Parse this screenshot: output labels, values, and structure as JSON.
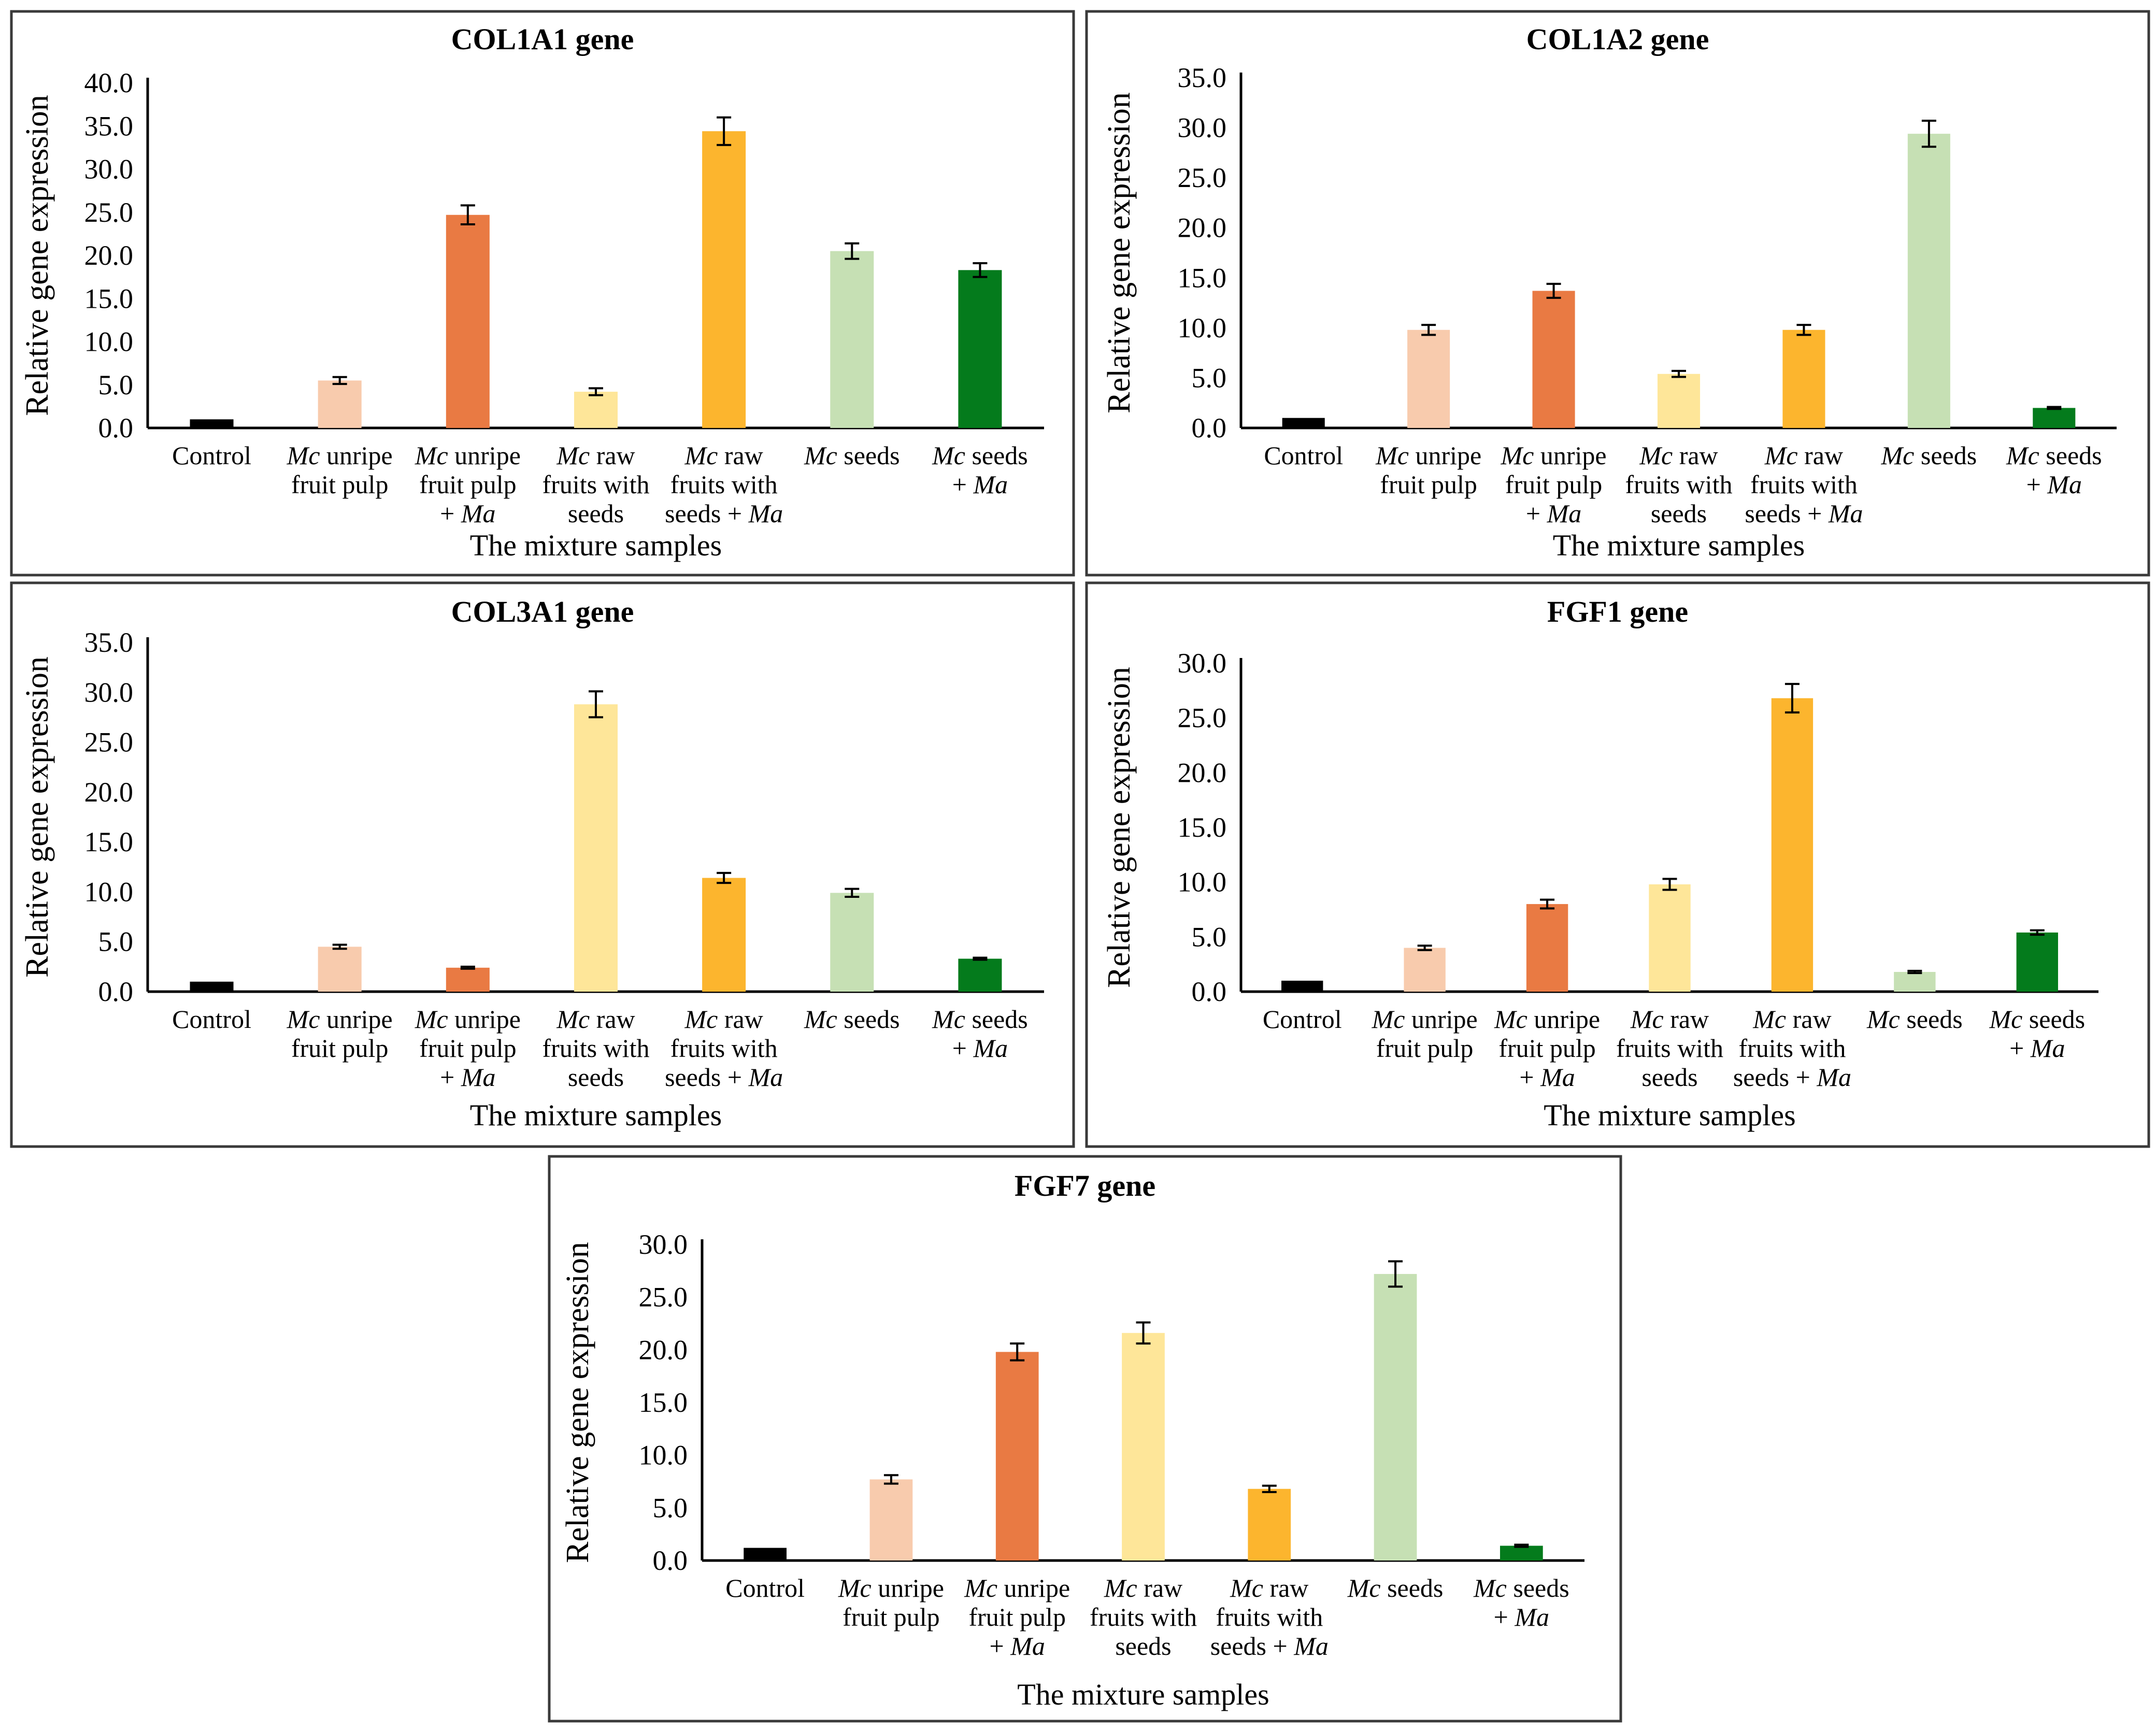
{
  "figure": {
    "shared_xlabel": "The mixture samples",
    "shared_ylabel": "Relative gene expression",
    "categories": [
      {
        "lines": [
          [
            {
              "t": "Control",
              "i": false
            }
          ]
        ]
      },
      {
        "lines": [
          [
            {
              "t": "Mc",
              "i": true
            },
            {
              "t": " unripe",
              "i": false
            }
          ],
          [
            {
              "t": "fruit pulp",
              "i": false
            }
          ]
        ]
      },
      {
        "lines": [
          [
            {
              "t": "Mc",
              "i": true
            },
            {
              "t": " unripe",
              "i": false
            }
          ],
          [
            {
              "t": "fruit pulp",
              "i": false
            }
          ],
          [
            {
              "t": "+ ",
              "i": false
            },
            {
              "t": "Ma",
              "i": true
            }
          ]
        ]
      },
      {
        "lines": [
          [
            {
              "t": "Mc",
              "i": true
            },
            {
              "t": " raw",
              "i": false
            }
          ],
          [
            {
              "t": "fruits with",
              "i": false
            }
          ],
          [
            {
              "t": "seeds",
              "i": false
            }
          ]
        ]
      },
      {
        "lines": [
          [
            {
              "t": "Mc",
              "i": true
            },
            {
              "t": " raw",
              "i": false
            }
          ],
          [
            {
              "t": "fruits with",
              "i": false
            }
          ],
          [
            {
              "t": "seeds + ",
              "i": false
            },
            {
              "t": "Ma",
              "i": true
            }
          ]
        ]
      },
      {
        "lines": [
          [
            {
              "t": "Mc",
              "i": true
            },
            {
              "t": " seeds",
              "i": false
            }
          ]
        ]
      },
      {
        "lines": [
          [
            {
              "t": "Mc",
              "i": true
            },
            {
              "t": " seeds",
              "i": false
            }
          ],
          [
            {
              "t": "+ ",
              "i": false
            },
            {
              "t": "Ma",
              "i": true
            }
          ]
        ]
      }
    ],
    "colors": [
      "#000000",
      "#f8cbad",
      "#e97a43",
      "#fee699",
      "#fcb52e",
      "#c6e0b4",
      "#047b1c"
    ]
  },
  "chart_data": [
    {
      "type": "bar",
      "title": "COL1A1 gene",
      "xlabel": "The mixture samples",
      "ylabel": "Relative gene expression",
      "ylim": [
        0,
        40
      ],
      "ticks": [
        "0.0",
        "5.0",
        "10.0",
        "15.0",
        "20.0",
        "25.0",
        "30.0",
        "35.0",
        "40.0"
      ],
      "values": [
        1.0,
        5.5,
        24.7,
        4.2,
        34.4,
        20.5,
        18.3
      ],
      "errors": [
        0.0,
        0.4,
        1.1,
        0.4,
        1.6,
        0.9,
        0.8
      ]
    },
    {
      "type": "bar",
      "title": "COL1A2 gene",
      "xlabel": "The mixture samples",
      "ylabel": "Relative gene expression",
      "ylim": [
        0,
        35
      ],
      "ticks": [
        "0.0",
        "5.0",
        "10.0",
        "15.0",
        "20.0",
        "25.0",
        "30.0",
        "35.0"
      ],
      "values": [
        1.0,
        9.8,
        13.7,
        5.4,
        9.8,
        29.4,
        2.0
      ],
      "errors": [
        0.0,
        0.5,
        0.7,
        0.3,
        0.5,
        1.3,
        0.1
      ]
    },
    {
      "type": "bar",
      "title": "COL3A1 gene",
      "xlabel": "The mixture samples",
      "ylabel": "Relative gene expression",
      "ylim": [
        0,
        35
      ],
      "ticks": [
        "0.0",
        "5.0",
        "10.0",
        "15.0",
        "20.0",
        "25.0",
        "30.0",
        "35.0"
      ],
      "values": [
        1.0,
        4.5,
        2.4,
        28.8,
        11.4,
        9.9,
        3.3
      ],
      "errors": [
        0.0,
        0.2,
        0.1,
        1.3,
        0.5,
        0.4,
        0.1
      ]
    },
    {
      "type": "bar",
      "title": "FGF1 gene",
      "xlabel": "The mixture samples",
      "ylabel": "Relative gene expression",
      "ylim": [
        0,
        30
      ],
      "ticks": [
        "0.0",
        "5.0",
        "10.0",
        "15.0",
        "20.0",
        "25.0",
        "30.0"
      ],
      "values": [
        1.0,
        4.0,
        8.0,
        9.8,
        26.8,
        1.8,
        5.4
      ],
      "errors": [
        0.0,
        0.2,
        0.4,
        0.5,
        1.3,
        0.1,
        0.2
      ]
    },
    {
      "type": "bar",
      "title": "FGF7 gene",
      "xlabel": "The mixture samples",
      "ylabel": "Relative gene expression",
      "ylim": [
        0,
        30
      ],
      "ticks": [
        "0.0",
        "5.0",
        "10.0",
        "15.0",
        "20.0",
        "25.0",
        "30.0"
      ],
      "values": [
        1.2,
        7.7,
        19.8,
        21.6,
        6.8,
        27.2,
        1.4
      ],
      "errors": [
        0.0,
        0.4,
        0.8,
        1.0,
        0.3,
        1.2,
        0.1
      ]
    }
  ]
}
